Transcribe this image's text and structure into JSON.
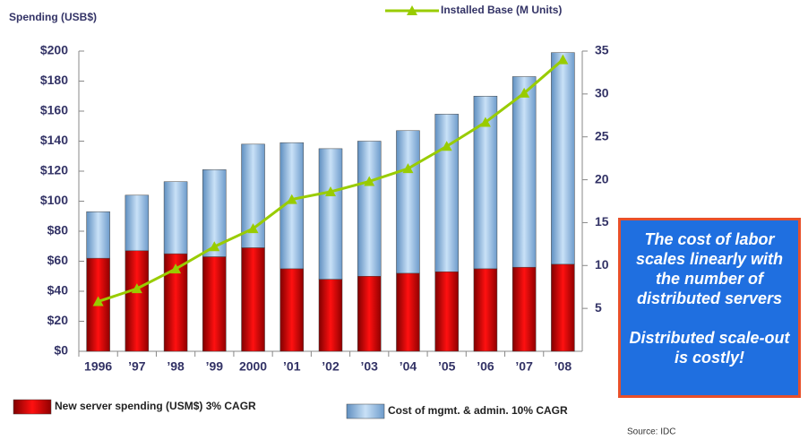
{
  "chart_data": {
    "type": "bar_line",
    "y_label": "Spending (USB$)",
    "categories": [
      "1996",
      "’97",
      "’98",
      "’99",
      "2000",
      "’01",
      "’02",
      "’03",
      "’04",
      "’05",
      "’06",
      "’07",
      "’08"
    ],
    "series": [
      {
        "name": "New server spending (USM$) 3% CAGR",
        "color": "#e00000",
        "type": "bar",
        "values": [
          62,
          67,
          65,
          63,
          69,
          55,
          48,
          50,
          52,
          53,
          55,
          56,
          58
        ]
      },
      {
        "name": "Cost of mgmt. & admin. 10% CAGR",
        "color": "#9dc3e6",
        "type": "bar",
        "values": [
          31,
          37,
          48,
          58,
          69,
          84,
          87,
          90,
          95,
          105,
          115,
          127,
          141
        ]
      },
      {
        "name": "Installed Base (M Units)",
        "color": "#99cc00",
        "type": "line",
        "axis": "y2",
        "values": [
          5.8,
          7.3,
          9.6,
          12.2,
          14.3,
          17.7,
          18.6,
          19.8,
          21.3,
          23.9,
          26.7,
          30.1,
          34.0
        ]
      }
    ],
    "ylim": [
      0,
      200
    ],
    "yticks": [
      {
        "value": 0,
        "label": "$0"
      },
      {
        "value": 20,
        "label": "$20"
      },
      {
        "value": 40,
        "label": "$40"
      },
      {
        "value": 60,
        "label": "$60"
      },
      {
        "value": 80,
        "label": "$80"
      },
      {
        "value": 100,
        "label": "$100"
      },
      {
        "value": 120,
        "label": "$120"
      },
      {
        "value": 140,
        "label": "$140"
      },
      {
        "value": 160,
        "label": "$160"
      },
      {
        "value": 180,
        "label": "$180"
      },
      {
        "value": 200,
        "label": "$200"
      }
    ],
    "y2lim": [
      0,
      35
    ],
    "y2ticks": [
      5,
      10,
      15,
      20,
      25,
      30,
      35
    ],
    "annotations": [
      "The cost of labor scales linearly with the number of distributed servers",
      "Distributed scale-out is costly!"
    ],
    "source": "Source: IDC"
  }
}
